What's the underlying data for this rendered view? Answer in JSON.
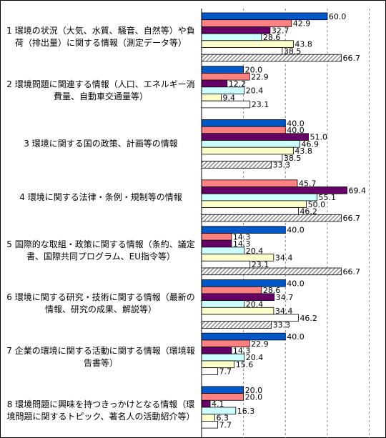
{
  "chart_data": {
    "type": "bar",
    "orientation": "horizontal",
    "categories": [
      "1 環境の状況（大気、水質、騒音、自然等）や負荷（排出量）に関する情報（測定データ等）",
      "2 環境問題に関連する情報（人口、エネルギー消費量、自動車交通量等）",
      "3 環境に関する国の政策、計画等の情報",
      "4 環境に関する法律・条例・規制等の情報",
      "5 国際的な取組・政策に関する情報（条約、議定書、国際共同プログラム、EU指令等）",
      "6 環境に関する研究・技術に関する情報（最新の情報、研究の成果、解説等）",
      "7 企業の環境に関する活動に関する情報（環境報告書等）",
      "8 環境問題に興味を持つきっかけとなる情報（環境問題に関するトピック、著名人の活動紹介等）"
    ],
    "series": [
      {
        "color": "#0058c8",
        "values": [
          60,
          20,
          40,
          null,
          40,
          40,
          40,
          20
        ],
        "value_labels": [
          "60.0",
          "20.0",
          "40.0",
          null,
          "40.0",
          "40.0",
          "40.0",
          "20.0"
        ]
      },
      {
        "color": "#ff8080",
        "values": [
          42.9,
          22.9,
          40,
          45.7,
          14.3,
          28.6,
          22.9,
          20
        ],
        "value_labels": [
          "42.9",
          "22.9",
          "40.0",
          "45.7",
          "14.3",
          "28.6",
          "22.9",
          "20.0"
        ]
      },
      {
        "color": "#660066",
        "values": [
          32.7,
          12.2,
          51,
          69.4,
          14.3,
          34.7,
          14.3,
          4.1
        ],
        "value_labels": [
          "32.7",
          "12.2",
          "51.0",
          "69.4",
          "14.3",
          "34.7",
          "14.3",
          "4.1"
        ]
      },
      {
        "color": "#ccffff",
        "values": [
          28.6,
          20.4,
          46.9,
          55.1,
          20.4,
          20.4,
          20.4,
          16.3
        ],
        "value_labels": [
          "28.6",
          "20.4",
          "46.9",
          "55.1",
          "20.4",
          "20.4",
          "20.4",
          "16.3"
        ]
      },
      {
        "color": "#ffffcc",
        "values": [
          43.8,
          9.4,
          43.8,
          50,
          34.4,
          34.4,
          15.6,
          6.3
        ],
        "value_labels": [
          "43.8",
          "9.4",
          "43.8",
          "50.0",
          "34.4",
          "34.4",
          "15.6",
          "6.3"
        ]
      },
      {
        "color": "#ffffff",
        "values": [
          38.5,
          23.1,
          38.5,
          46.2,
          23.1,
          46.2,
          7.7,
          7.7
        ],
        "value_labels": [
          "38.5",
          "23.1",
          "38.5",
          "46.2",
          "23.1",
          "46.2",
          "7.7",
          "7.7"
        ]
      },
      {
        "color": "#999999",
        "pattern": "hatch",
        "values": [
          66.7,
          null,
          33.3,
          66.7,
          66.7,
          33.3,
          null,
          null
        ],
        "value_labels": [
          "66.7",
          null,
          "33.3",
          "66.7",
          "66.7",
          "33.3",
          null,
          null
        ]
      }
    ],
    "xlim": [
      0,
      88
    ],
    "xticks": [
      0,
      20,
      40,
      60,
      80
    ],
    "grid": true
  }
}
